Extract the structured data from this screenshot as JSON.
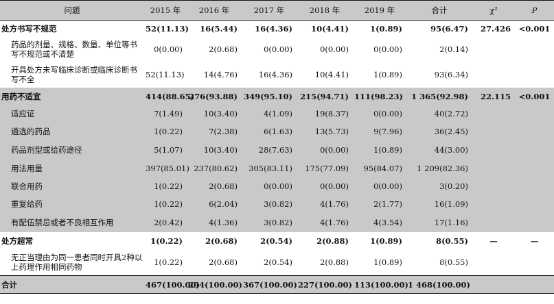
{
  "header": {
    "issue": "问题",
    "y2015": "2015 年",
    "y2016": "2016 年",
    "y2017": "2017 年",
    "y2018": "2018 年",
    "y2019": "2019 年",
    "total": "合计",
    "chi2": "χ²",
    "p": "P"
  },
  "rows": [
    {
      "label": "处方书写不规范",
      "c2015": "52(11.13)",
      "c2016": "16(5.44)",
      "c2017": "16(4.36)",
      "c2018": "10(4.41)",
      "c2019": "1(0.89)",
      "total": "95(6.47)",
      "chi2": "27.426",
      "p": "<0.001"
    },
    {
      "label": "药品的剂量、规格、数量、单位等书写不规范或不清楚",
      "c2015": "0(0.00)",
      "c2016": "2(0.68)",
      "c2017": "0(0.00)",
      "c2018": "0(0.00)",
      "c2019": "0(0.00)",
      "total": "2(0.14)",
      "chi2": "",
      "p": ""
    },
    {
      "label": "开具处方未写临床诊断或临床诊断书写不全",
      "c2015": "52(11.13)",
      "c2016": "14(4.76)",
      "c2017": "16(4.36)",
      "c2018": "10(4.41)",
      "c2019": "1(0.89)",
      "total": "93(6.34)",
      "chi2": "",
      "p": ""
    },
    {
      "label": "用药不适宜",
      "c2015": "414(88.65)",
      "c2016": "276(93.88)",
      "c2017": "349(95.10)",
      "c2018": "215(94.71)",
      "c2019": "111(98.23)",
      "total": "1 365(92.98)",
      "chi2": "22.115",
      "p": "<0.001"
    },
    {
      "label": "适应证",
      "c2015": "7(1.49)",
      "c2016": "10(3.40)",
      "c2017": "4(1.09)",
      "c2018": "19(8.37)",
      "c2019": "0(0.00)",
      "total": "40(2.72)",
      "chi2": "",
      "p": ""
    },
    {
      "label": "遴选的药品",
      "c2015": "1(0.22)",
      "c2016": "7(2.38)",
      "c2017": "6(1.63)",
      "c2018": "13(5.73)",
      "c2019": "9(7.96)",
      "total": "36(2.45)",
      "chi2": "",
      "p": ""
    },
    {
      "label": "药品剂型或给药途径",
      "c2015": "5(1.07)",
      "c2016": "10(3.40)",
      "c2017": "28(7.63)",
      "c2018": "0(0.00)",
      "c2019": "1(0.89)",
      "total": "44(3.00)",
      "chi2": "",
      "p": ""
    },
    {
      "label": "用法用量",
      "c2015": "397(85.01)",
      "c2016": "237(80.62)",
      "c2017": "305(83.11)",
      "c2018": "175(77.09)",
      "c2019": "95(84.07)",
      "total": "1 209(82.36)",
      "chi2": "",
      "p": ""
    },
    {
      "label": "联合用药",
      "c2015": "1(0.22)",
      "c2016": "2(0.68)",
      "c2017": "0(0.00)",
      "c2018": "0(0.00)",
      "c2019": "0(0.00)",
      "total": "3(0.20)",
      "chi2": "",
      "p": ""
    },
    {
      "label": "重复给药",
      "c2015": "1(0.22)",
      "c2016": "6(2.04)",
      "c2017": "3(0.82)",
      "c2018": "4(1.76)",
      "c2019": "2(1.77)",
      "total": "16(1.09)",
      "chi2": "",
      "p": ""
    },
    {
      "label": "有配伍禁忌或者不良相互作用",
      "c2015": "2(0.42)",
      "c2016": "4(1.36)",
      "c2017": "3(0.82)",
      "c2018": "4(1.76)",
      "c2019": "4(3.54)",
      "total": "17(1.16)",
      "chi2": "",
      "p": ""
    },
    {
      "label": "处方超常",
      "c2015": "1(0.22)",
      "c2016": "2(0.68)",
      "c2017": "2(0.54)",
      "c2018": "2(0.88)",
      "c2019": "1(0.89)",
      "total": "8(0.55)",
      "chi2": "—",
      "p": "—"
    },
    {
      "label": "无正当理由为同一患者同时开具2种以上药理作用相同药物",
      "c2015": "1(0.22)",
      "c2016": "2(0.68)",
      "c2017": "2(0.54)",
      "c2018": "2(0.88)",
      "c2019": "1(0.89)",
      "total": "8(0.55)",
      "chi2": "",
      "p": ""
    },
    {
      "label": "合计",
      "c2015": "467(100.00)",
      "c2016": "294(100.00)",
      "c2017": "367(100.00)",
      "c2018": "227(100.00)",
      "c2019": "113(100.00)",
      "total": "1 468(100.00)",
      "chi2": "",
      "p": ""
    }
  ]
}
